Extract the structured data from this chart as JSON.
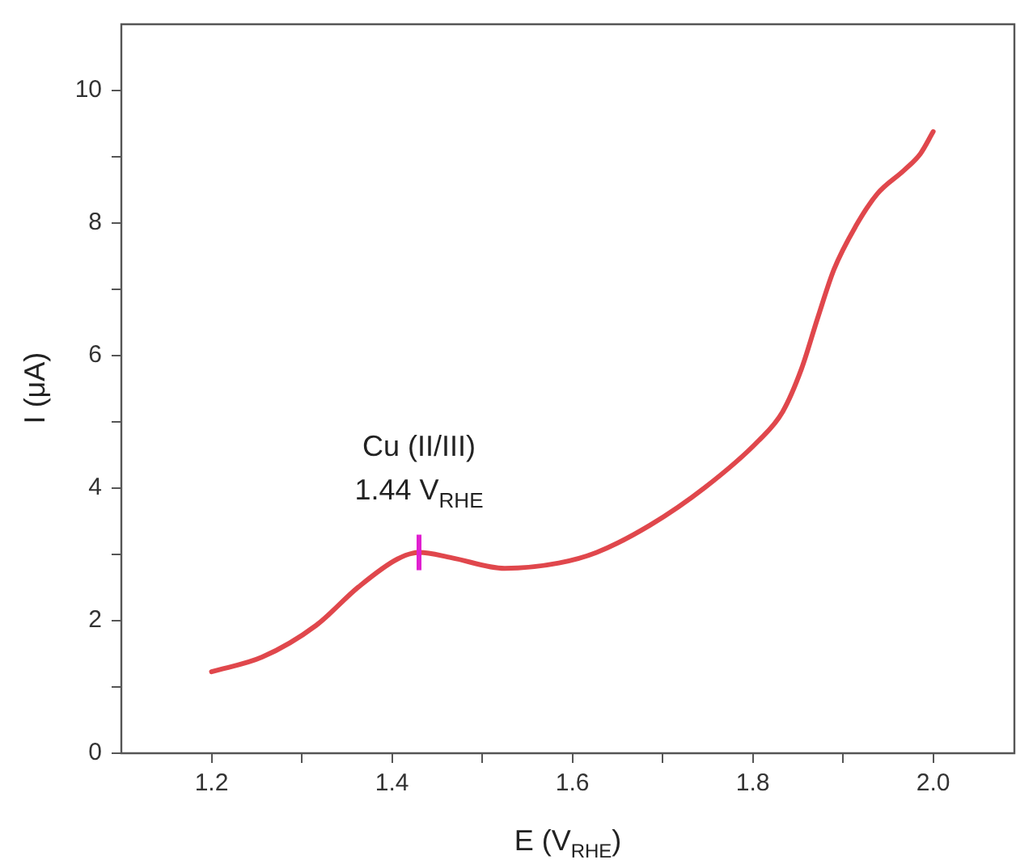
{
  "chart_data": {
    "type": "line",
    "xlabel": "E (V$_{RHE}$)",
    "ylabel": "I (μA)",
    "x": [
      1.2,
      1.256,
      1.316,
      1.363,
      1.406,
      1.43,
      1.466,
      1.525,
      1.585,
      1.627,
      1.686,
      1.747,
      1.806,
      1.833,
      1.854,
      1.872,
      1.89,
      1.914,
      1.938,
      1.968,
      1.986,
      2.0
    ],
    "series": [
      {
        "color": "#e0474c",
        "values": [
          1.23,
          1.45,
          1.93,
          2.51,
          2.93,
          3.03,
          2.95,
          2.79,
          2.87,
          3.03,
          3.44,
          4.01,
          4.71,
          5.15,
          5.8,
          6.57,
          7.3,
          7.95,
          8.44,
          8.8,
          9.05,
          9.38
        ]
      }
    ],
    "xlim": [
      1.1,
      2.09
    ],
    "xticks": [
      1.2,
      {
        "value": 1.3,
        "label": null
      },
      1.4,
      {
        "value": 1.5,
        "label": null
      },
      1.6,
      {
        "value": 1.7,
        "label": null
      },
      1.8,
      {
        "value": 1.9,
        "label": null
      },
      {
        "value": 2,
        "label": "2.0"
      }
    ],
    "ylim": [
      0,
      11
    ],
    "yticks": [
      0,
      {
        "value": 1,
        "label": null
      },
      2,
      {
        "value": 3,
        "label": null
      },
      4,
      {
        "value": 5,
        "label": null
      },
      6,
      {
        "value": 7,
        "label": null
      },
      8,
      {
        "value": 9,
        "label": null
      },
      10
    ],
    "annotations": [
      {
        "text": "Cu (II/III)\n1.44 V$_{RHE}$",
        "x": 1.43,
        "y": 3.03
      }
    ],
    "grid": false,
    "legend": false,
    "marker": "none",
    "line_style": "solid"
  }
}
